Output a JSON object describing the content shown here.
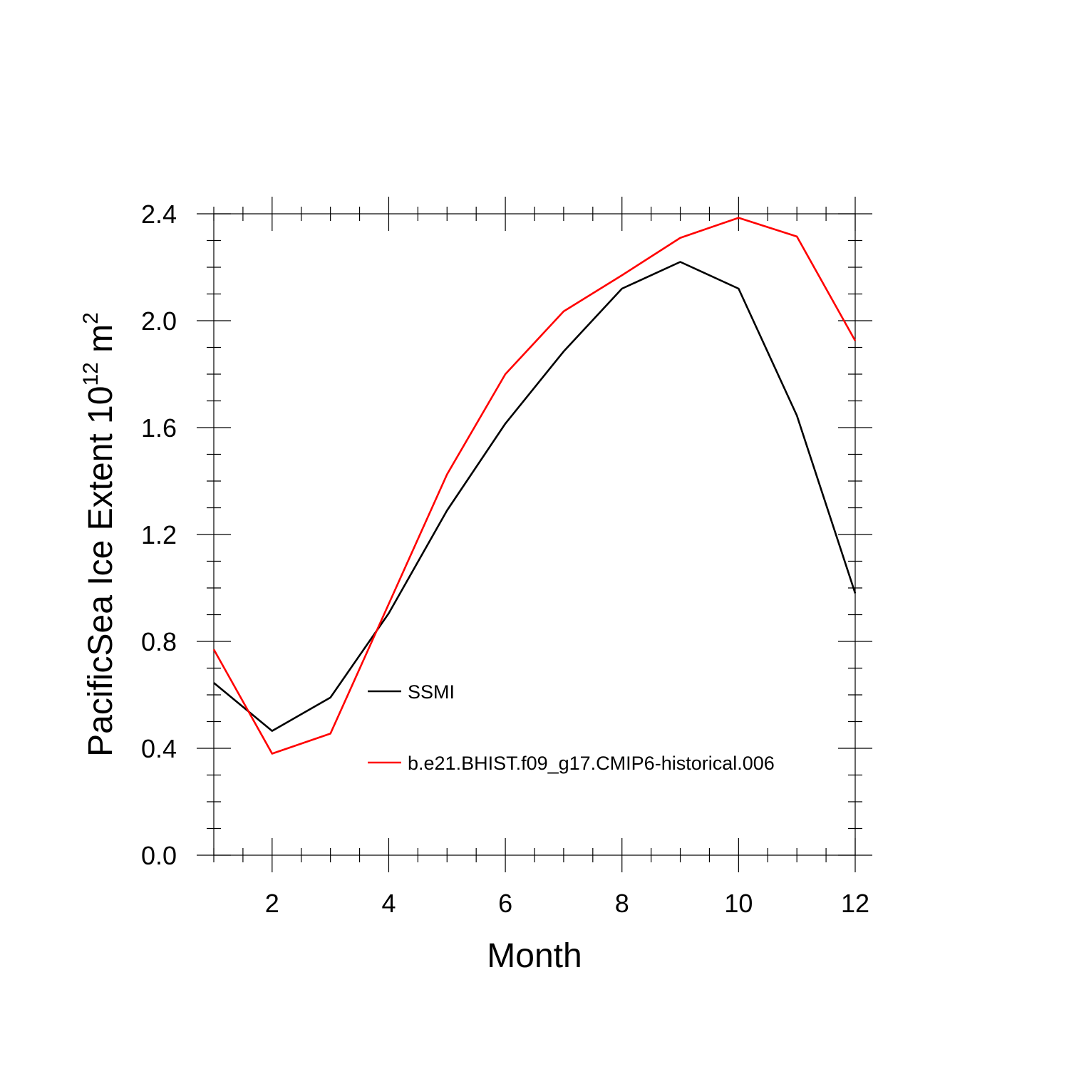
{
  "chart_data": {
    "type": "line",
    "xlabel": "Month",
    "ylabel": {
      "base": "PacificSea Ice Extent 10",
      "exp1": "12",
      "unit": " m",
      "exp2": "2"
    },
    "xlim": [
      1,
      12
    ],
    "ylim": [
      0,
      2.4
    ],
    "xticks": [
      2,
      4,
      6,
      8,
      10,
      12
    ],
    "xtick_labels": [
      "2",
      "4",
      "6",
      "8",
      "10",
      "12"
    ],
    "yticks": [
      0,
      0.4,
      0.8,
      1.2,
      1.6,
      2.0,
      2.4
    ],
    "ytick_labels": [
      "0.0",
      "0.4",
      "0.8",
      "1.2",
      "1.6",
      "2.0",
      "2.4"
    ],
    "x": [
      1,
      2,
      3,
      4,
      5,
      6,
      7,
      8,
      9,
      10,
      11,
      12
    ],
    "series": [
      {
        "name": "SSMI",
        "color": "#000000",
        "values": [
          0.645,
          0.465,
          0.59,
          0.905,
          1.29,
          1.615,
          1.885,
          2.12,
          2.22,
          2.12,
          1.645,
          0.98
        ]
      },
      {
        "name": "b.e21.BHIST.f09_g17.CMIP6-historical.006",
        "color": "#ff0000",
        "values": [
          0.77,
          0.38,
          0.455,
          0.94,
          1.425,
          1.8,
          2.035,
          2.17,
          2.31,
          2.385,
          2.315,
          1.925
        ]
      }
    ],
    "grid": false,
    "legend_position": "center-bottom (inside plot)"
  }
}
